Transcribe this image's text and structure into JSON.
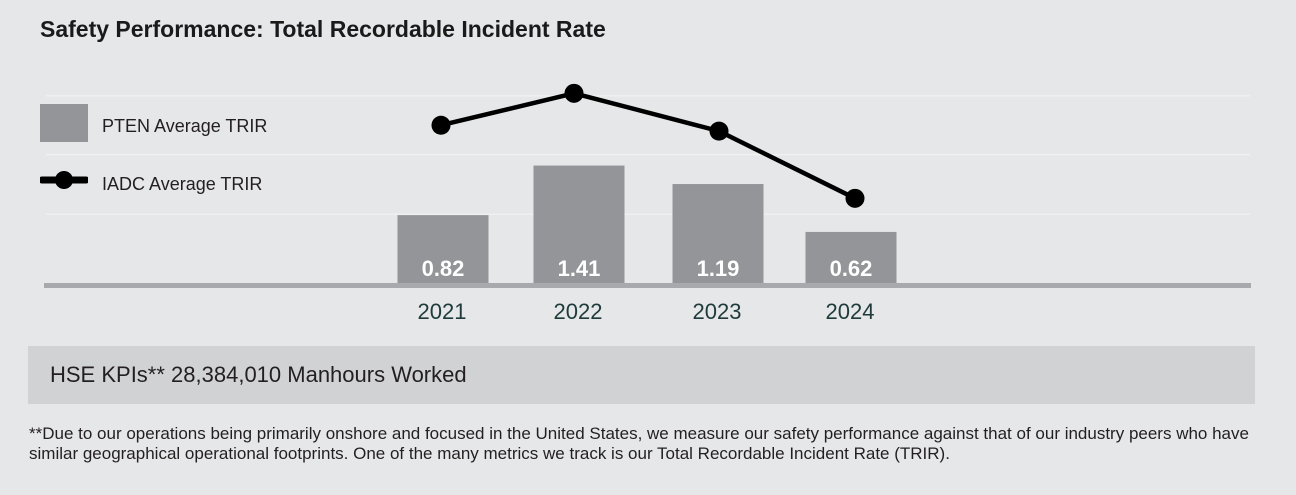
{
  "title": "Safety Performance: Total Recordable Incident Rate",
  "legend": {
    "bar_label": "PTEN Average TRIR",
    "line_label": "IADC Average TRIR"
  },
  "colors": {
    "bar": "#939598",
    "line": "#000000",
    "axis": "#a7a9ac",
    "grid": "#f1f2f2",
    "background": "#e6e7e8",
    "kpi_band": "#d1d2d4",
    "category_text": "#1e3a3a"
  },
  "chart_data": {
    "type": "bar",
    "categories": [
      "2021",
      "2022",
      "2023",
      "2024"
    ],
    "series": [
      {
        "name": "PTEN Average TRIR",
        "type": "bar",
        "values": [
          0.82,
          1.41,
          1.19,
          0.62
        ],
        "labels": [
          "0.82",
          "1.41",
          "1.19",
          "0.62"
        ]
      },
      {
        "name": "IADC Average TRIR",
        "type": "line",
        "values": [
          1.89,
          2.27,
          1.82,
          1.02
        ]
      }
    ],
    "ylim": [
      0,
      2.9
    ],
    "grid": true,
    "legend_position": "top-left"
  },
  "kpi": {
    "text": "HSE KPIs** 28,384,010 Manhours Worked"
  },
  "footnote": "**Due to our operations being primarily onshore and focused in the United States, we measure our safety performance against that of our industry peers who have similar geographical operational footprints. One of the many metrics we track is our Total Recordable Incident Rate (TRIR)."
}
